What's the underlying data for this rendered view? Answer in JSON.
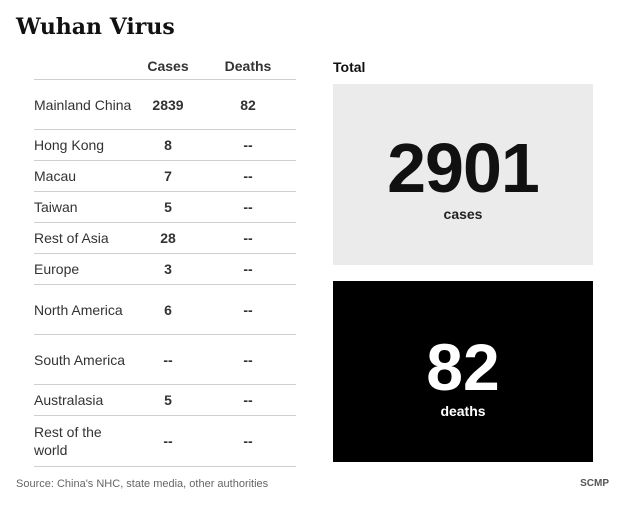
{
  "title": "Wuhan Virus",
  "table": {
    "columns": {
      "region": "",
      "cases": "Cases",
      "deaths": "Deaths"
    },
    "rows": [
      {
        "region": "Mainland China",
        "cases": "2839",
        "deaths": "82"
      },
      {
        "region": "Hong Kong",
        "cases": "8",
        "deaths": "--"
      },
      {
        "region": "Macau",
        "cases": "7",
        "deaths": "--"
      },
      {
        "region": "Taiwan",
        "cases": "5",
        "deaths": "--"
      },
      {
        "region": "Rest of Asia",
        "cases": "28",
        "deaths": "--"
      },
      {
        "region": "Europe",
        "cases": "3",
        "deaths": "--"
      },
      {
        "region": "North America",
        "cases": "6",
        "deaths": "--"
      },
      {
        "region": "South America",
        "cases": "--",
        "deaths": "--"
      },
      {
        "region": "Australasia",
        "cases": "5",
        "deaths": "--"
      },
      {
        "region": "Rest of the world",
        "cases": "--",
        "deaths": "--"
      }
    ]
  },
  "total": {
    "label": "Total",
    "cases_value": "2901",
    "cases_unit": "cases",
    "deaths_value": "82",
    "deaths_unit": "deaths"
  },
  "colors": {
    "cases_box": "#ebebeb",
    "deaths_box": "#000000"
  },
  "source": "Source: China's NHC, state media, other authorities",
  "credit": "SCMP",
  "chart_data": {
    "type": "table",
    "title": "Wuhan Virus",
    "columns": [
      "",
      "Cases",
      "Deaths"
    ],
    "rows": [
      [
        "Mainland China",
        2839,
        82
      ],
      [
        "Hong Kong",
        8,
        null
      ],
      [
        "Macau",
        7,
        null
      ],
      [
        "Taiwan",
        5,
        null
      ],
      [
        "Rest of Asia",
        28,
        null
      ],
      [
        "Europe",
        3,
        null
      ],
      [
        "North America",
        6,
        null
      ],
      [
        "South America",
        null,
        null
      ],
      [
        "Australasia",
        5,
        null
      ],
      [
        "Rest of the world",
        null,
        null
      ]
    ],
    "totals": {
      "cases": 2901,
      "deaths": 82
    }
  }
}
